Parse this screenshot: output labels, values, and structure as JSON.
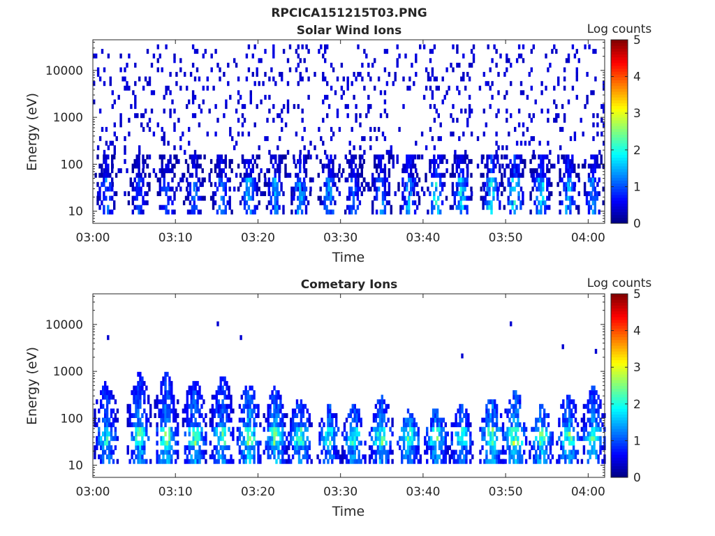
{
  "figure": {
    "title": "RPCICA151215T03.PNG"
  },
  "chart_data": [
    {
      "type": "heatmap",
      "title": "Solar Wind Ions",
      "xlabel": "Time",
      "ylabel": "Energy (eV)",
      "x_ticks": [
        "03:00",
        "03:10",
        "03:20",
        "03:30",
        "03:40",
        "03:50",
        "04:00"
      ],
      "x_range": [
        "03:00",
        "04:02"
      ],
      "y_ticks": [
        "10",
        "100",
        "1000",
        "10000"
      ],
      "y_range": [
        5.5,
        45000
      ],
      "y_scale": "log",
      "colorbar": {
        "label": "Log counts",
        "ticks": [
          "0",
          "1",
          "2",
          "3",
          "4",
          "5"
        ],
        "range": [
          0,
          5
        ],
        "colormap": "jet"
      },
      "low_energy_burst_minutes": [
        1.5,
        5.5,
        8.8,
        12.2,
        15.5,
        18.8,
        22.0,
        25.0,
        28.5,
        31.5,
        34.8,
        38.2,
        41.5,
        44.5,
        48.2,
        51.0,
        54.2,
        57.5,
        60.5
      ],
      "burst_peak_log_counts": [
        1.4,
        1.2,
        1.4,
        1.3,
        1.5,
        1.8,
        1.6,
        1.8,
        1.6,
        1.4,
        1.5,
        1.8,
        2.2,
        2.0,
        2.4,
        2.3,
        2.0,
        1.9,
        1.7
      ],
      "background_energy_range_eV": [
        20,
        30000
      ],
      "background_log_counts": 0.3
    },
    {
      "type": "heatmap",
      "title": "Cometary Ions",
      "xlabel": "Time",
      "ylabel": "Energy (eV)",
      "x_ticks": [
        "03:00",
        "03:10",
        "03:20",
        "03:30",
        "03:40",
        "03:50",
        "04:00"
      ],
      "x_range": [
        "03:00",
        "04:02"
      ],
      "y_ticks": [
        "10",
        "100",
        "1000",
        "10000"
      ],
      "y_range": [
        5.5,
        45000
      ],
      "y_scale": "log",
      "colorbar": {
        "label": "Log counts",
        "ticks": [
          "0",
          "1",
          "2",
          "3",
          "4",
          "5"
        ],
        "range": [
          0,
          5
        ],
        "colormap": "jet"
      },
      "burst_minutes": [
        1.5,
        5.5,
        8.8,
        12.2,
        15.5,
        18.8,
        22.0,
        25.0,
        28.5,
        31.5,
        34.8,
        38.2,
        41.5,
        44.5,
        48.2,
        51.0,
        54.2,
        57.5,
        60.5
      ],
      "burst_peak_log_counts": [
        2.4,
        2.7,
        2.8,
        2.7,
        2.6,
        2.9,
        2.7,
        2.6,
        2.3,
        2.5,
        2.6,
        2.7,
        2.6,
        2.4,
        2.9,
        3.0,
        2.7,
        2.8,
        2.6
      ],
      "burst_top_energy_eV": [
        450,
        700,
        700,
        500,
        600,
        400,
        350,
        200,
        150,
        150,
        250,
        110,
        130,
        150,
        200,
        300,
        150,
        250,
        350
      ],
      "isolated_high_energy_points": [
        {
          "minute": 1.7,
          "energy_eV": 5500
        },
        {
          "minute": 15.0,
          "energy_eV": 10500
        },
        {
          "minute": 17.8,
          "energy_eV": 5200
        },
        {
          "minute": 44.6,
          "energy_eV": 2000
        },
        {
          "minute": 50.5,
          "energy_eV": 10000
        },
        {
          "minute": 56.8,
          "energy_eV": 3300
        },
        {
          "minute": 60.8,
          "energy_eV": 3000
        }
      ]
    }
  ]
}
